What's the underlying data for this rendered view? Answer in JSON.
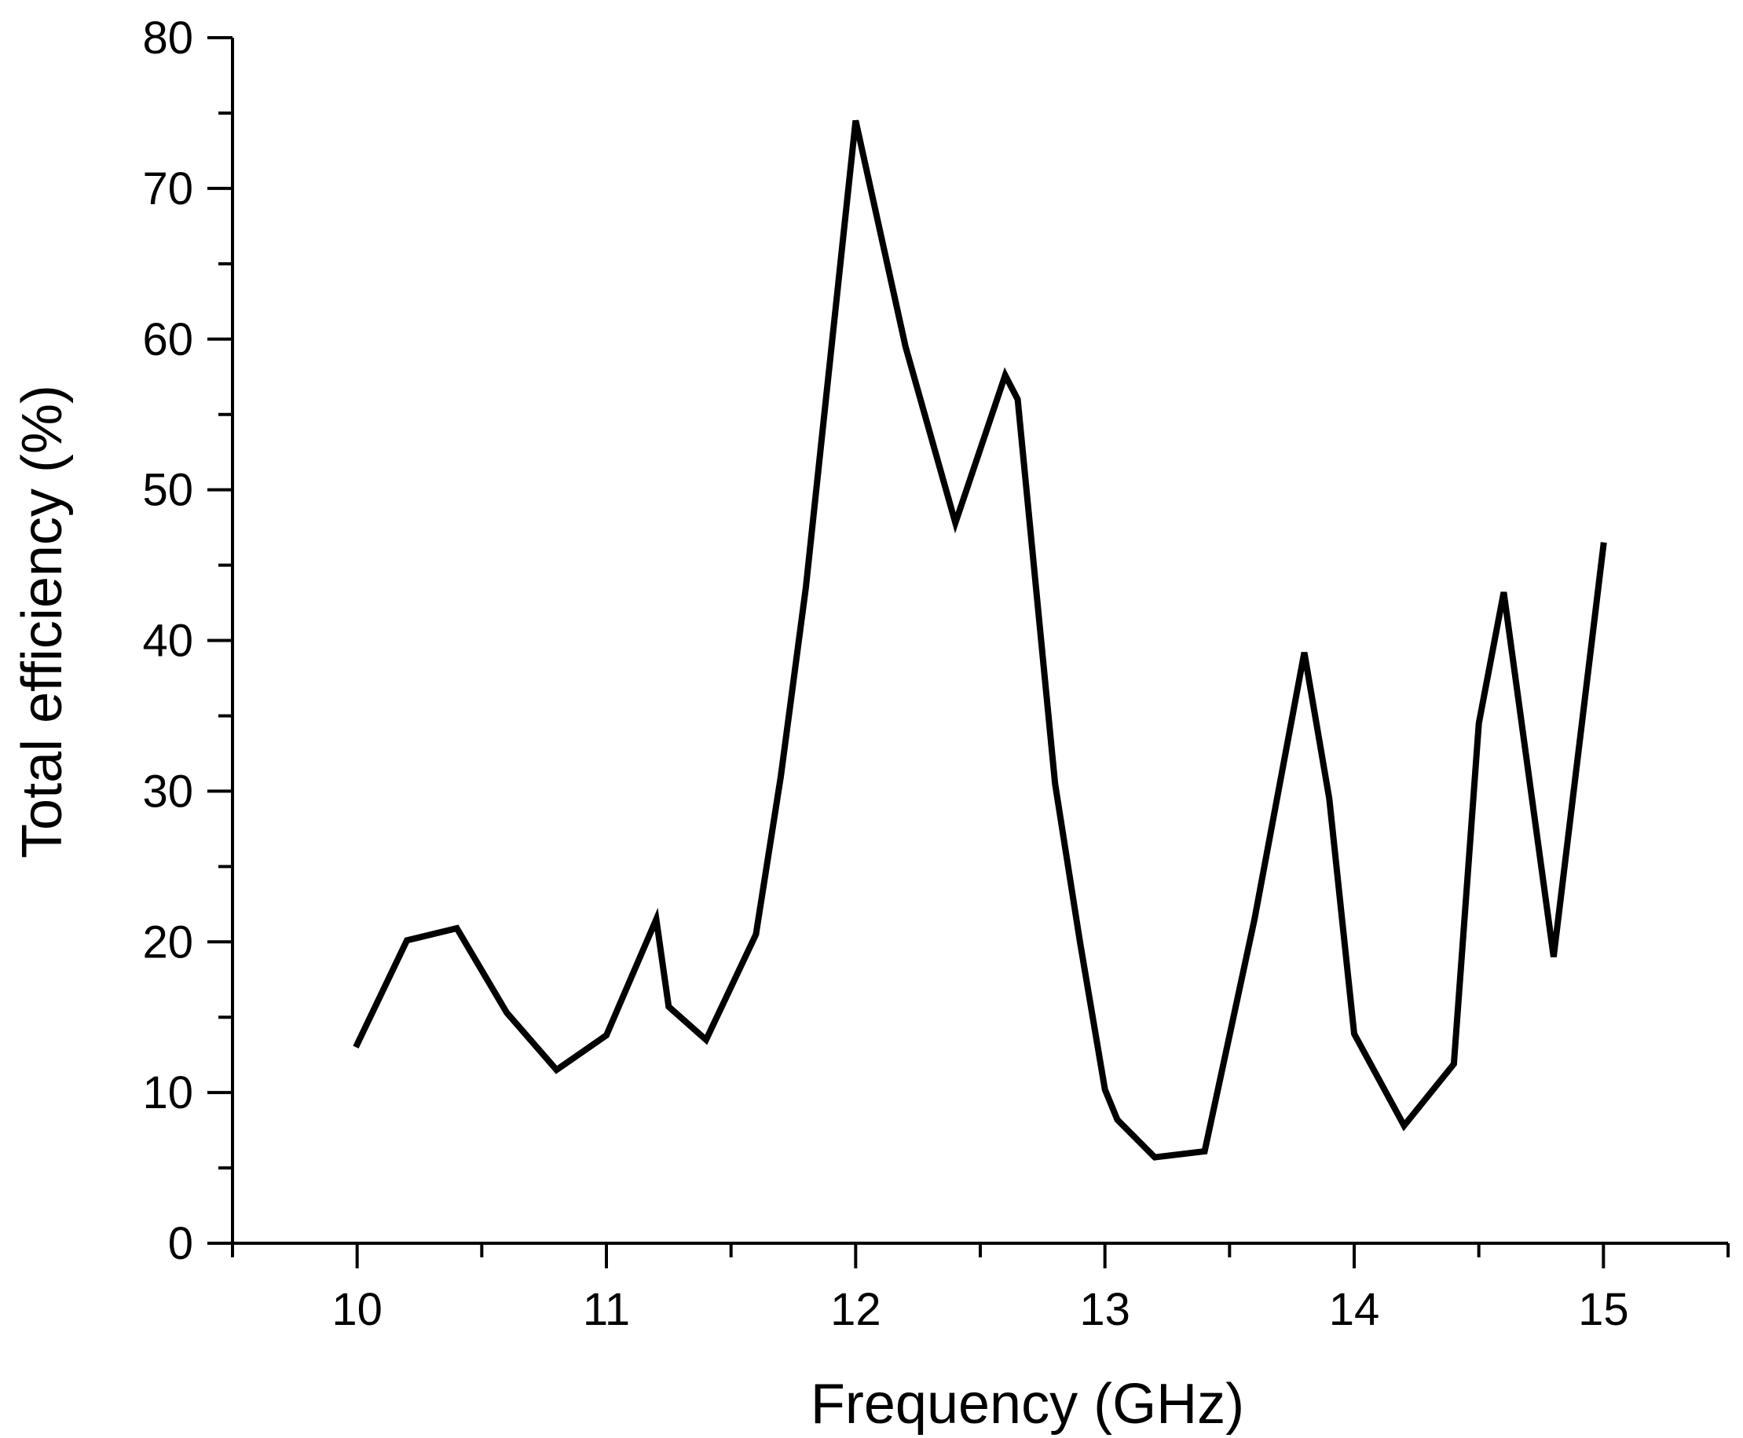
{
  "chart_data": {
    "type": "line",
    "xlabel": "Frequency (GHz)",
    "ylabel": "Total efficiency (%)",
    "xlim": [
      9.5,
      15.5
    ],
    "ylim": [
      0,
      80
    ],
    "x_ticks": [
      10,
      11,
      12,
      13,
      14,
      15
    ],
    "x_tick_labels": [
      "10",
      "11",
      "12",
      "13",
      "14",
      "15"
    ],
    "x_minor_step": 0.5,
    "y_ticks": [
      0,
      10,
      20,
      30,
      40,
      50,
      60,
      70,
      80
    ],
    "y_tick_labels": [
      "0",
      "10",
      "20",
      "30",
      "40",
      "50",
      "60",
      "70",
      "80"
    ],
    "y_minor_step": 5,
    "grid": false,
    "series": [
      {
        "color": "#000000",
        "x": [
          10.0,
          10.2,
          10.4,
          10.6,
          10.8,
          11.0,
          11.2,
          11.25,
          11.4,
          11.6,
          11.7,
          11.8,
          12.0,
          12.2,
          12.4,
          12.6,
          12.65,
          12.8,
          12.9,
          13.0,
          13.05,
          13.2,
          13.4,
          13.6,
          13.8,
          13.9,
          14.0,
          14.2,
          14.4,
          14.5,
          14.6,
          14.8,
          15.0
        ],
        "y": [
          13.2,
          20.1,
          20.9,
          15.3,
          11.5,
          13.8,
          21.5,
          15.7,
          13.5,
          20.5,
          31.0,
          43.5,
          74.5,
          59.5,
          47.8,
          57.6,
          56.0,
          30.5,
          20.0,
          10.2,
          8.2,
          5.7,
          6.1,
          21.5,
          39.2,
          29.5,
          13.9,
          7.8,
          11.9,
          34.5,
          43.2,
          19.0,
          46.3
        ]
      }
    ]
  }
}
